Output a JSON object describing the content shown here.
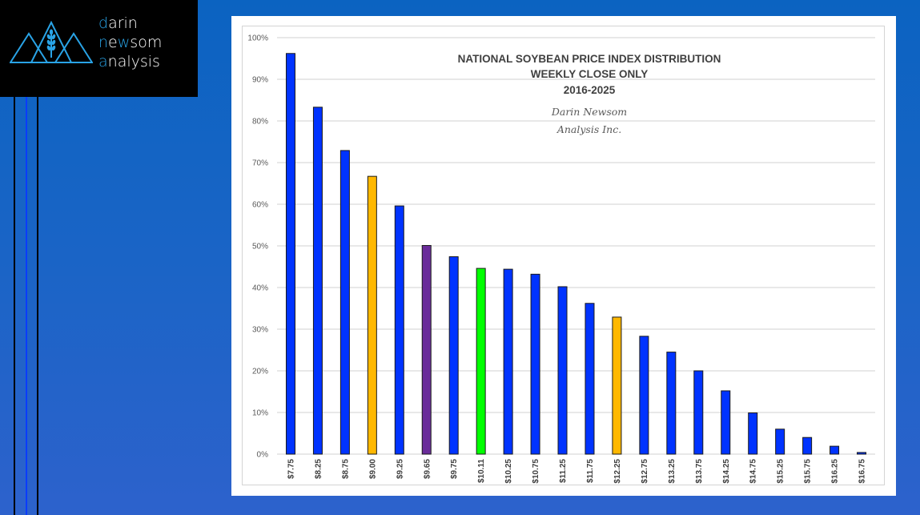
{
  "branding": {
    "line1_accent": "d",
    "line1_rest": "arin",
    "line2_accent1": "n",
    "line2_mid1": "e",
    "line2_accent2": "w",
    "line2_rest": "som",
    "line3_accent": "a",
    "line3_rest": "nalysis",
    "accent_color": "#29a3e6"
  },
  "chart_data": {
    "type": "bar",
    "title": "NATIONAL SOYBEAN PRICE INDEX DISTRIBUTION",
    "subtitle": "WEEKLY CLOSE ONLY",
    "years": "2016-2025",
    "watermark_line1": "Darin Newsom",
    "watermark_line2": "Analysis Inc.",
    "xlabel": "",
    "ylabel": "",
    "ylim": [
      0,
      100
    ],
    "y_ticks": [
      "0%",
      "10%",
      "20%",
      "30%",
      "40%",
      "50%",
      "60%",
      "70%",
      "80%",
      "90%",
      "100%"
    ],
    "grid": true,
    "legend": "none",
    "categories": [
      "$7.75",
      "$8.25",
      "$8.75",
      "$9.00",
      "$9.25",
      "$9.65",
      "$9.75",
      "$10.11",
      "$10.25",
      "$10.75",
      "$11.25",
      "$11.75",
      "$12.25",
      "$12.75",
      "$13.25",
      "$13.75",
      "$14.25",
      "$14.75",
      "$15.25",
      "$15.75",
      "$16.25",
      "$16.75"
    ],
    "values": [
      96.2,
      83.3,
      72.9,
      66.7,
      59.6,
      50.1,
      47.4,
      44.6,
      44.4,
      43.2,
      40.2,
      36.2,
      32.9,
      28.3,
      24.5,
      20.0,
      15.2,
      9.9,
      6.0,
      4.0,
      1.9,
      0.4
    ],
    "bar_colors": [
      "#0033ff",
      "#0033ff",
      "#0033ff",
      "#ffb800",
      "#0033ff",
      "#6a2c9a",
      "#0033ff",
      "#00ff00",
      "#0033ff",
      "#0033ff",
      "#0033ff",
      "#0033ff",
      "#ffb800",
      "#0033ff",
      "#0033ff",
      "#0033ff",
      "#0033ff",
      "#0033ff",
      "#0033ff",
      "#0033ff",
      "#0033ff",
      "#0033ff"
    ]
  }
}
